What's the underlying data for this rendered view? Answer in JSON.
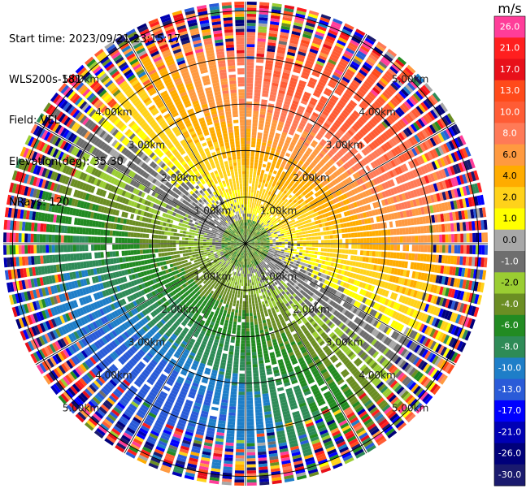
{
  "header": {
    "lines": [
      "Start time: 2023/09/21 23:15:17",
      "WLS200s-181",
      "Field: VEL",
      "Elevation(deg): 35.30",
      "NRays: 120"
    ]
  },
  "chart_data": {
    "type": "heatmap",
    "projection": "polar-ppi",
    "field": "VEL",
    "units": "m/s",
    "rays": 120,
    "range_rings": [
      "1.00km",
      "2.00km",
      "3.00km",
      "4.00km",
      "5.00km"
    ],
    "range_ring_values_km": [
      1,
      2,
      3,
      4,
      5
    ],
    "max_range_km": 5.2,
    "azimuth_lines_deg": [
      0,
      30,
      60,
      90,
      120,
      150,
      180,
      210,
      240,
      270,
      300,
      330
    ],
    "colorbar": {
      "title": "m/s",
      "tick_labels": [
        "26.0",
        "21.0",
        "17.0",
        "13.0",
        "10.0",
        "8.0",
        "6.0",
        "4.0",
        "2.0",
        "1.0",
        "0.0",
        "-1.0",
        "-2.0",
        "-4.0",
        "-6.0",
        "-8.0",
        "-10.0",
        "-13.0",
        "-17.0",
        "-21.0",
        "-26.0",
        "-30.0"
      ],
      "bins": [
        {
          "from": 26,
          "to": 30,
          "color": "#ff3d99"
        },
        {
          "from": 21,
          "to": 26,
          "color": "#ff1f1f"
        },
        {
          "from": 17,
          "to": 21,
          "color": "#e8101a"
        },
        {
          "from": 13,
          "to": 17,
          "color": "#ff4a1a"
        },
        {
          "from": 10,
          "to": 13,
          "color": "#ff5c35"
        },
        {
          "from": 8,
          "to": 10,
          "color": "#ff7a57"
        },
        {
          "from": 6,
          "to": 8,
          "color": "#ff9a40"
        },
        {
          "from": 4,
          "to": 6,
          "color": "#ffac00"
        },
        {
          "from": 2,
          "to": 4,
          "color": "#ffd21a"
        },
        {
          "from": 1,
          "to": 2,
          "color": "#ffff00"
        },
        {
          "from": 0,
          "to": 1,
          "color": "#a8a8a8"
        },
        {
          "from": -1,
          "to": 0,
          "color": "#6e6e6e"
        },
        {
          "from": -2,
          "to": -1,
          "color": "#9acd32"
        },
        {
          "from": -4,
          "to": -2,
          "color": "#6b8e23"
        },
        {
          "from": -6,
          "to": -4,
          "color": "#228b22"
        },
        {
          "from": -8,
          "to": -6,
          "color": "#2e8b57"
        },
        {
          "from": -10,
          "to": -8,
          "color": "#1e7ec8"
        },
        {
          "from": -13,
          "to": -10,
          "color": "#2a5bd8"
        },
        {
          "from": -17,
          "to": -13,
          "color": "#0000ff"
        },
        {
          "from": -21,
          "to": -17,
          "color": "#0000b4"
        },
        {
          "from": -26,
          "to": -21,
          "color": "#00007a"
        },
        {
          "from": -30,
          "to": -26,
          "color": "#1a1a6e"
        }
      ]
    },
    "velocity_pattern": {
      "description": "Toward-radar (negative) velocities to the southwest, away-radar (positive) velocities to the northeast, increasing in magnitude with range; noisy outer gates.",
      "max_positive_azimuth_deg": 35,
      "max_speed_ms": 11,
      "speed_gain_ms_per_km": 4.5,
      "near_zero_radius_km": 0.55,
      "noise_onset_km": 3.9
    }
  }
}
